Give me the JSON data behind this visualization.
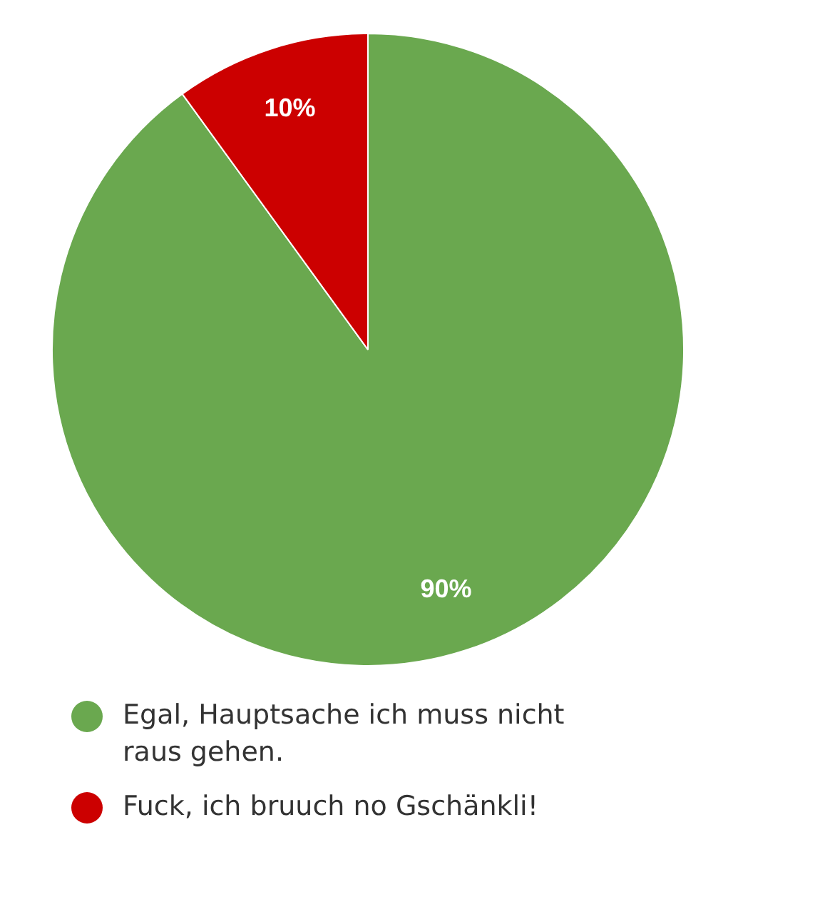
{
  "chart_data": {
    "type": "pie",
    "categories": [
      "Egal, Hauptsache ich muss nicht raus gehen.",
      "Fuck, ich bruuch no Gschänkli!"
    ],
    "values": [
      90,
      10
    ],
    "colors": [
      "#6aa84f",
      "#cc0000"
    ],
    "value_labels": [
      "90%",
      "10%"
    ],
    "legend": "bottom"
  }
}
